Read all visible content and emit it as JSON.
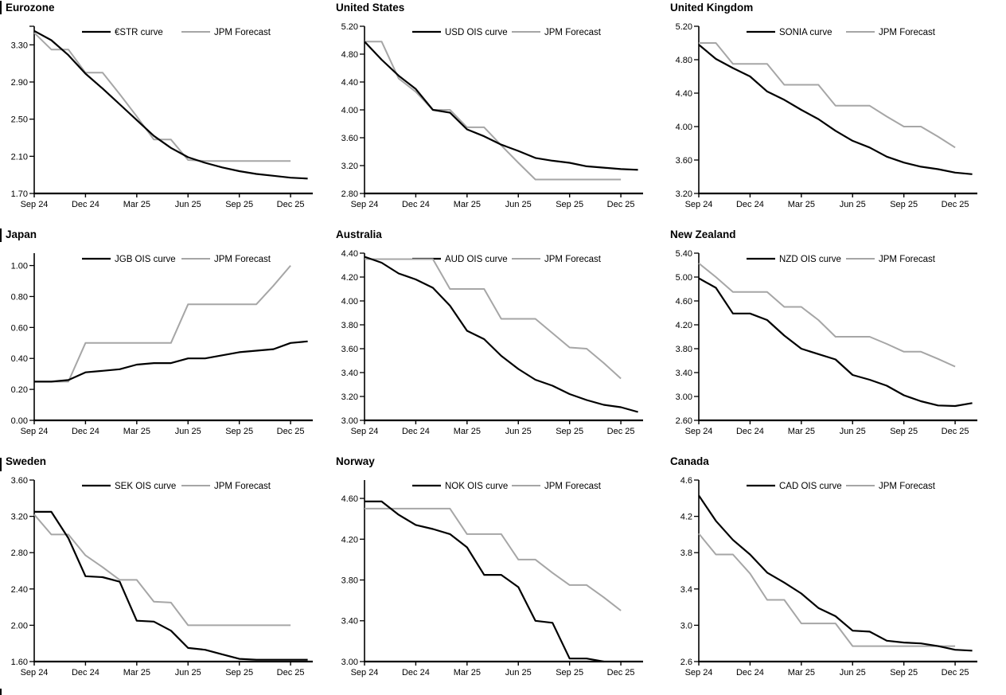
{
  "page": {
    "background": "#ffffff",
    "section_marker_glyph": "|"
  },
  "colors": {
    "curve": "#000000",
    "forecast": "#a6a6a6",
    "axis": "#000000",
    "text": "#000000"
  },
  "x_axis_note": "monthly points from Sep 2024 to Dec 2025; labeled ticks quarterly",
  "chart_data": [
    {
      "id": "eurozone",
      "type": "line",
      "title": "Eurozone",
      "x_ticklabels": [
        "Sep 24",
        "Dec 24",
        "Mar 25",
        "Jun 25",
        "Sep 25",
        "Dec 25"
      ],
      "x_tick_monthly_indices": [
        0,
        3,
        6,
        9,
        12,
        15
      ],
      "ylim": [
        1.7,
        3.5
      ],
      "yticks": [
        1.7,
        2.1,
        2.5,
        2.9,
        3.3
      ],
      "ytick_labels": [
        "1.70",
        "2.10",
        "2.50",
        "2.90",
        "3.30"
      ],
      "axis_end_tick": true,
      "legend_position": "top-inside",
      "series": [
        {
          "name": "€STR curve",
          "color": "#000000",
          "values": [
            3.45,
            3.35,
            3.19,
            2.99,
            2.83,
            2.66,
            2.49,
            2.32,
            2.19,
            2.09,
            2.03,
            1.98,
            1.94,
            1.91,
            1.89,
            1.87,
            1.86
          ]
        },
        {
          "name": "JPM Forecast",
          "color": "#a6a6a6",
          "values": [
            3.43,
            3.25,
            3.25,
            3.0,
            3.0,
            2.77,
            2.53,
            2.28,
            2.28,
            2.06,
            2.05,
            2.05,
            2.05,
            2.05,
            2.05,
            2.05
          ]
        }
      ]
    },
    {
      "id": "united-states",
      "type": "line",
      "title": "United States",
      "x_ticklabels": [
        "Sep 24",
        "Dec 24",
        "Mar 25",
        "Jun 25",
        "Sep 25",
        "Dec 25"
      ],
      "x_tick_monthly_indices": [
        0,
        3,
        6,
        9,
        12,
        15
      ],
      "ylim": [
        2.8,
        5.2
      ],
      "yticks": [
        2.8,
        3.2,
        3.6,
        4.0,
        4.4,
        4.8,
        5.2
      ],
      "ytick_labels": [
        "2.80",
        "3.20",
        "3.60",
        "4.00",
        "4.40",
        "4.80",
        "5.20"
      ],
      "axis_end_tick": false,
      "legend_position": "top-inside",
      "series": [
        {
          "name": "USD OIS curve",
          "color": "#000000",
          "values": [
            4.98,
            4.72,
            4.49,
            4.3,
            4.0,
            3.96,
            3.72,
            3.62,
            3.5,
            3.41,
            3.31,
            3.27,
            3.24,
            3.19,
            3.17,
            3.15,
            3.14
          ]
        },
        {
          "name": "JPM Forecast",
          "color": "#a6a6a6",
          "values": [
            4.98,
            4.98,
            4.45,
            4.26,
            4.0,
            4.0,
            3.75,
            3.75,
            3.49,
            3.24,
            3.0,
            3.0,
            3.0,
            3.0,
            3.0,
            3.0
          ]
        }
      ]
    },
    {
      "id": "united-kingdom",
      "type": "line",
      "title": "United Kingdom",
      "x_ticklabels": [
        "Sep 24",
        "Dec 24",
        "Mar 25",
        "Jun 25",
        "Sep 25",
        "Dec 25"
      ],
      "x_tick_monthly_indices": [
        0,
        3,
        6,
        9,
        12,
        15
      ],
      "ylim": [
        3.2,
        5.2
      ],
      "yticks": [
        3.2,
        3.6,
        4.0,
        4.4,
        4.8,
        5.2
      ],
      "ytick_labels": [
        "3.20",
        "3.60",
        "4.00",
        "4.40",
        "4.80",
        "5.20"
      ],
      "axis_end_tick": false,
      "legend_position": "top-inside",
      "series": [
        {
          "name": "SONIA curve",
          "color": "#000000",
          "values": [
            4.98,
            4.81,
            4.7,
            4.6,
            4.42,
            4.32,
            4.2,
            4.09,
            3.95,
            3.83,
            3.75,
            3.64,
            3.57,
            3.52,
            3.49,
            3.45,
            3.43
          ]
        },
        {
          "name": "JPM Forecast",
          "color": "#a6a6a6",
          "values": [
            5.0,
            5.0,
            4.75,
            4.75,
            4.75,
            4.5,
            4.5,
            4.5,
            4.25,
            4.25,
            4.25,
            4.12,
            4.0,
            4.0,
            3.88,
            3.75
          ]
        }
      ]
    },
    {
      "id": "japan",
      "type": "line",
      "title": "Japan",
      "x_ticklabels": [
        "Sep 24",
        "Dec 24",
        "Mar 25",
        "Jun 25",
        "Sep 25",
        "Dec 25"
      ],
      "x_tick_monthly_indices": [
        0,
        3,
        6,
        9,
        12,
        15
      ],
      "ylim": [
        0.0,
        1.08
      ],
      "yticks": [
        0.0,
        0.2,
        0.4,
        0.6,
        0.8,
        1.0
      ],
      "ytick_labels": [
        "0.00",
        "0.20",
        "0.40",
        "0.60",
        "0.80",
        "1.00"
      ],
      "axis_end_tick": false,
      "legend_position": "top-inside",
      "series": [
        {
          "name": "JGB OIS curve",
          "color": "#000000",
          "values": [
            0.25,
            0.25,
            0.26,
            0.31,
            0.32,
            0.33,
            0.36,
            0.37,
            0.37,
            0.4,
            0.4,
            0.42,
            0.44,
            0.45,
            0.46,
            0.5,
            0.51
          ]
        },
        {
          "name": "JPM Forecast",
          "color": "#a6a6a6",
          "values": [
            0.25,
            0.25,
            0.25,
            0.5,
            0.5,
            0.5,
            0.5,
            0.5,
            0.5,
            0.75,
            0.75,
            0.75,
            0.75,
            0.75,
            0.87,
            1.0
          ]
        }
      ]
    },
    {
      "id": "australia",
      "type": "line",
      "title": "Australia",
      "x_ticklabels": [
        "Sep 24",
        "Dec 24",
        "Mar 25",
        "Jun 25",
        "Sep 25",
        "Dec 25"
      ],
      "x_tick_monthly_indices": [
        0,
        3,
        6,
        9,
        12,
        15
      ],
      "ylim": [
        3.0,
        4.4
      ],
      "yticks": [
        3.0,
        3.2,
        3.4,
        3.6,
        3.8,
        4.0,
        4.2,
        4.4
      ],
      "ytick_labels": [
        "3.00",
        "3.20",
        "3.40",
        "3.60",
        "3.80",
        "4.00",
        "4.20",
        "4.40"
      ],
      "axis_end_tick": false,
      "legend_position": "top-inside",
      "series": [
        {
          "name": "AUD OIS curve",
          "color": "#000000",
          "values": [
            4.37,
            4.32,
            4.23,
            4.18,
            4.11,
            3.96,
            3.75,
            3.68,
            3.54,
            3.43,
            3.34,
            3.29,
            3.22,
            3.17,
            3.13,
            3.11,
            3.07
          ]
        },
        {
          "name": "JPM Forecast",
          "color": "#a6a6a6",
          "values": [
            4.35,
            4.35,
            4.35,
            4.35,
            4.35,
            4.1,
            4.1,
            4.1,
            3.85,
            3.85,
            3.85,
            3.73,
            3.61,
            3.6,
            3.48,
            3.35
          ]
        }
      ]
    },
    {
      "id": "new-zealand",
      "type": "line",
      "title": "New Zealand",
      "x_ticklabels": [
        "Sep 24",
        "Dec 24",
        "Mar 25",
        "Jun 25",
        "Sep 25",
        "Dec 25"
      ],
      "x_tick_monthly_indices": [
        0,
        3,
        6,
        9,
        12,
        15
      ],
      "ylim": [
        2.6,
        5.4
      ],
      "yticks": [
        2.6,
        3.0,
        3.4,
        3.8,
        4.2,
        4.6,
        5.0,
        5.4
      ],
      "ytick_labels": [
        "2.60",
        "3.00",
        "3.40",
        "3.80",
        "4.20",
        "4.60",
        "5.00",
        "5.40"
      ],
      "axis_end_tick": false,
      "legend_position": "top-inside",
      "series": [
        {
          "name": "NZD OIS curve",
          "color": "#000000",
          "values": [
            4.98,
            4.82,
            4.39,
            4.39,
            4.28,
            4.02,
            3.8,
            3.71,
            3.62,
            3.36,
            3.28,
            3.18,
            3.02,
            2.92,
            2.85,
            2.84,
            2.89
          ]
        },
        {
          "name": "JPM Forecast",
          "color": "#a6a6a6",
          "values": [
            5.23,
            5.0,
            4.75,
            4.75,
            4.75,
            4.5,
            4.5,
            4.28,
            4.0,
            4.0,
            4.0,
            3.88,
            3.75,
            3.75,
            3.63,
            3.5
          ]
        }
      ]
    },
    {
      "id": "sweden",
      "type": "line",
      "title": "Sweden",
      "x_ticklabels": [
        "Sep 24",
        "Dec 24",
        "Mar 25",
        "Jun 25",
        "Sep 25",
        "Dec 25"
      ],
      "x_tick_monthly_indices": [
        0,
        3,
        6,
        9,
        12,
        15
      ],
      "ylim": [
        1.6,
        3.6
      ],
      "yticks": [
        1.6,
        2.0,
        2.4,
        2.8,
        3.2,
        3.6
      ],
      "ytick_labels": [
        "1.60",
        "2.00",
        "2.40",
        "2.80",
        "3.20",
        "3.60"
      ],
      "axis_end_tick": false,
      "legend_position": "top-inside",
      "series": [
        {
          "name": "SEK OIS curve",
          "color": "#000000",
          "values": [
            3.25,
            3.25,
            2.96,
            2.54,
            2.53,
            2.48,
            2.05,
            2.04,
            1.94,
            1.75,
            1.73,
            1.68,
            1.63,
            1.62,
            1.62,
            1.62,
            1.62
          ]
        },
        {
          "name": "JPM Forecast",
          "color": "#a6a6a6",
          "values": [
            3.22,
            3.0,
            3.0,
            2.77,
            2.64,
            2.5,
            2.5,
            2.26,
            2.25,
            2.0,
            2.0,
            2.0,
            2.0,
            2.0,
            2.0,
            2.0
          ]
        }
      ]
    },
    {
      "id": "norway",
      "type": "line",
      "title": "Norway",
      "x_ticklabels": [
        "Sep 24",
        "Dec 24",
        "Mar 25",
        "Jun 25",
        "Sep 25",
        "Dec 25"
      ],
      "x_tick_monthly_indices": [
        0,
        3,
        6,
        9,
        12,
        15
      ],
      "ylim": [
        3.0,
        4.78
      ],
      "yticks": [
        3.0,
        3.4,
        3.8,
        4.2,
        4.6
      ],
      "ytick_labels": [
        "3.00",
        "3.40",
        "3.80",
        "4.20",
        "4.60"
      ],
      "axis_end_tick": false,
      "legend_position": "top-inside",
      "series": [
        {
          "name": "NOK OIS curve",
          "color": "#000000",
          "values": [
            4.57,
            4.57,
            4.44,
            4.34,
            4.3,
            4.25,
            4.12,
            3.85,
            3.85,
            3.73,
            3.4,
            3.38,
            3.03,
            3.03,
            3.0,
            null
          ]
        },
        {
          "name": "JPM Forecast",
          "color": "#a6a6a6",
          "values": [
            4.5,
            4.5,
            4.5,
            4.5,
            4.5,
            4.5,
            4.25,
            4.25,
            4.25,
            4.0,
            4.0,
            3.87,
            3.75,
            3.75,
            3.63,
            3.5
          ]
        }
      ]
    },
    {
      "id": "canada",
      "type": "line",
      "title": "Canada",
      "x_ticklabels": [
        "Sep 24",
        "Dec 24",
        "Mar 25",
        "Jun 25",
        "Sep 25",
        "Dec 25"
      ],
      "x_tick_monthly_indices": [
        0,
        3,
        6,
        9,
        12,
        15
      ],
      "ylim": [
        2.6,
        4.6
      ],
      "yticks": [
        2.6,
        3.0,
        3.4,
        3.8,
        4.2,
        4.6
      ],
      "ytick_labels": [
        "2.6",
        "3.0",
        "3.4",
        "3.8",
        "4.2",
        "4.6"
      ],
      "axis_end_tick": false,
      "legend_position": "top-inside",
      "series": [
        {
          "name": "CAD OIS curve",
          "color": "#000000",
          "values": [
            4.43,
            4.15,
            3.94,
            3.78,
            3.58,
            3.47,
            3.35,
            3.19,
            3.1,
            2.94,
            2.93,
            2.83,
            2.81,
            2.8,
            2.77,
            2.73,
            2.72
          ]
        },
        {
          "name": "JPM Forecast",
          "color": "#a6a6a6",
          "values": [
            4.01,
            3.78,
            3.78,
            3.57,
            3.28,
            3.28,
            3.02,
            3.02,
            3.02,
            2.77,
            2.77,
            2.77,
            2.77,
            2.77,
            2.77,
            2.77
          ]
        }
      ]
    }
  ]
}
